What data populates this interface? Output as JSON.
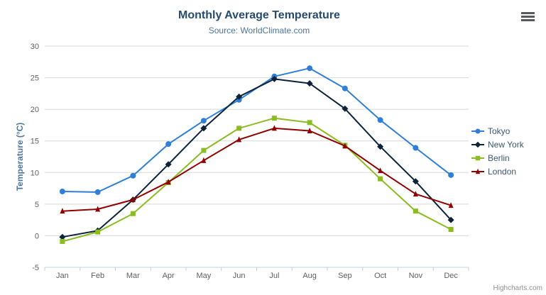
{
  "chart": {
    "title": "Monthly Average Temperature",
    "subtitle": "Source: WorldClimate.com",
    "credits": "Highcharts.com"
  },
  "chart_data": {
    "type": "line",
    "title": "Monthly Average Temperature",
    "subtitle": "Source: WorldClimate.com",
    "xlabel": "",
    "ylabel": "Temperature (°C)",
    "categories": [
      "Jan",
      "Feb",
      "Mar",
      "Apr",
      "May",
      "Jun",
      "Jul",
      "Aug",
      "Sep",
      "Oct",
      "Nov",
      "Dec"
    ],
    "ylim": [
      -5,
      30
    ],
    "yticks": [
      -5,
      0,
      5,
      10,
      15,
      20,
      25,
      30
    ],
    "grid": "horizontal",
    "legend_position": "right",
    "series": [
      {
        "name": "Tokyo",
        "color": "#2f7ed8",
        "marker": "circle",
        "values": [
          7.0,
          6.9,
          9.5,
          14.5,
          18.2,
          21.5,
          25.2,
          26.5,
          23.3,
          18.3,
          13.9,
          9.6
        ]
      },
      {
        "name": "New York",
        "color": "#0d233a",
        "marker": "diamond",
        "values": [
          -0.2,
          0.8,
          5.7,
          11.3,
          17.0,
          22.0,
          24.8,
          24.1,
          20.1,
          14.1,
          8.6,
          2.5
        ]
      },
      {
        "name": "Berlin",
        "color": "#8bbc21",
        "marker": "square",
        "values": [
          -0.9,
          0.6,
          3.5,
          8.4,
          13.5,
          17.0,
          18.6,
          17.9,
          14.3,
          9.0,
          3.9,
          1.0
        ]
      },
      {
        "name": "London",
        "color": "#910000",
        "marker": "triangle",
        "values": [
          3.9,
          4.2,
          5.7,
          8.5,
          11.9,
          15.2,
          17.0,
          16.6,
          14.2,
          10.3,
          6.6,
          4.8
        ]
      }
    ],
    "colors": {
      "title": "#274b6d",
      "subtitle": "#4d759e",
      "axis_title": "#4d759e",
      "tick_label": "#606060",
      "gridline": "#d8d8d8",
      "axis_line": "#c0d0e0",
      "legend_label": "#3e576f",
      "credits": "#909090"
    }
  }
}
